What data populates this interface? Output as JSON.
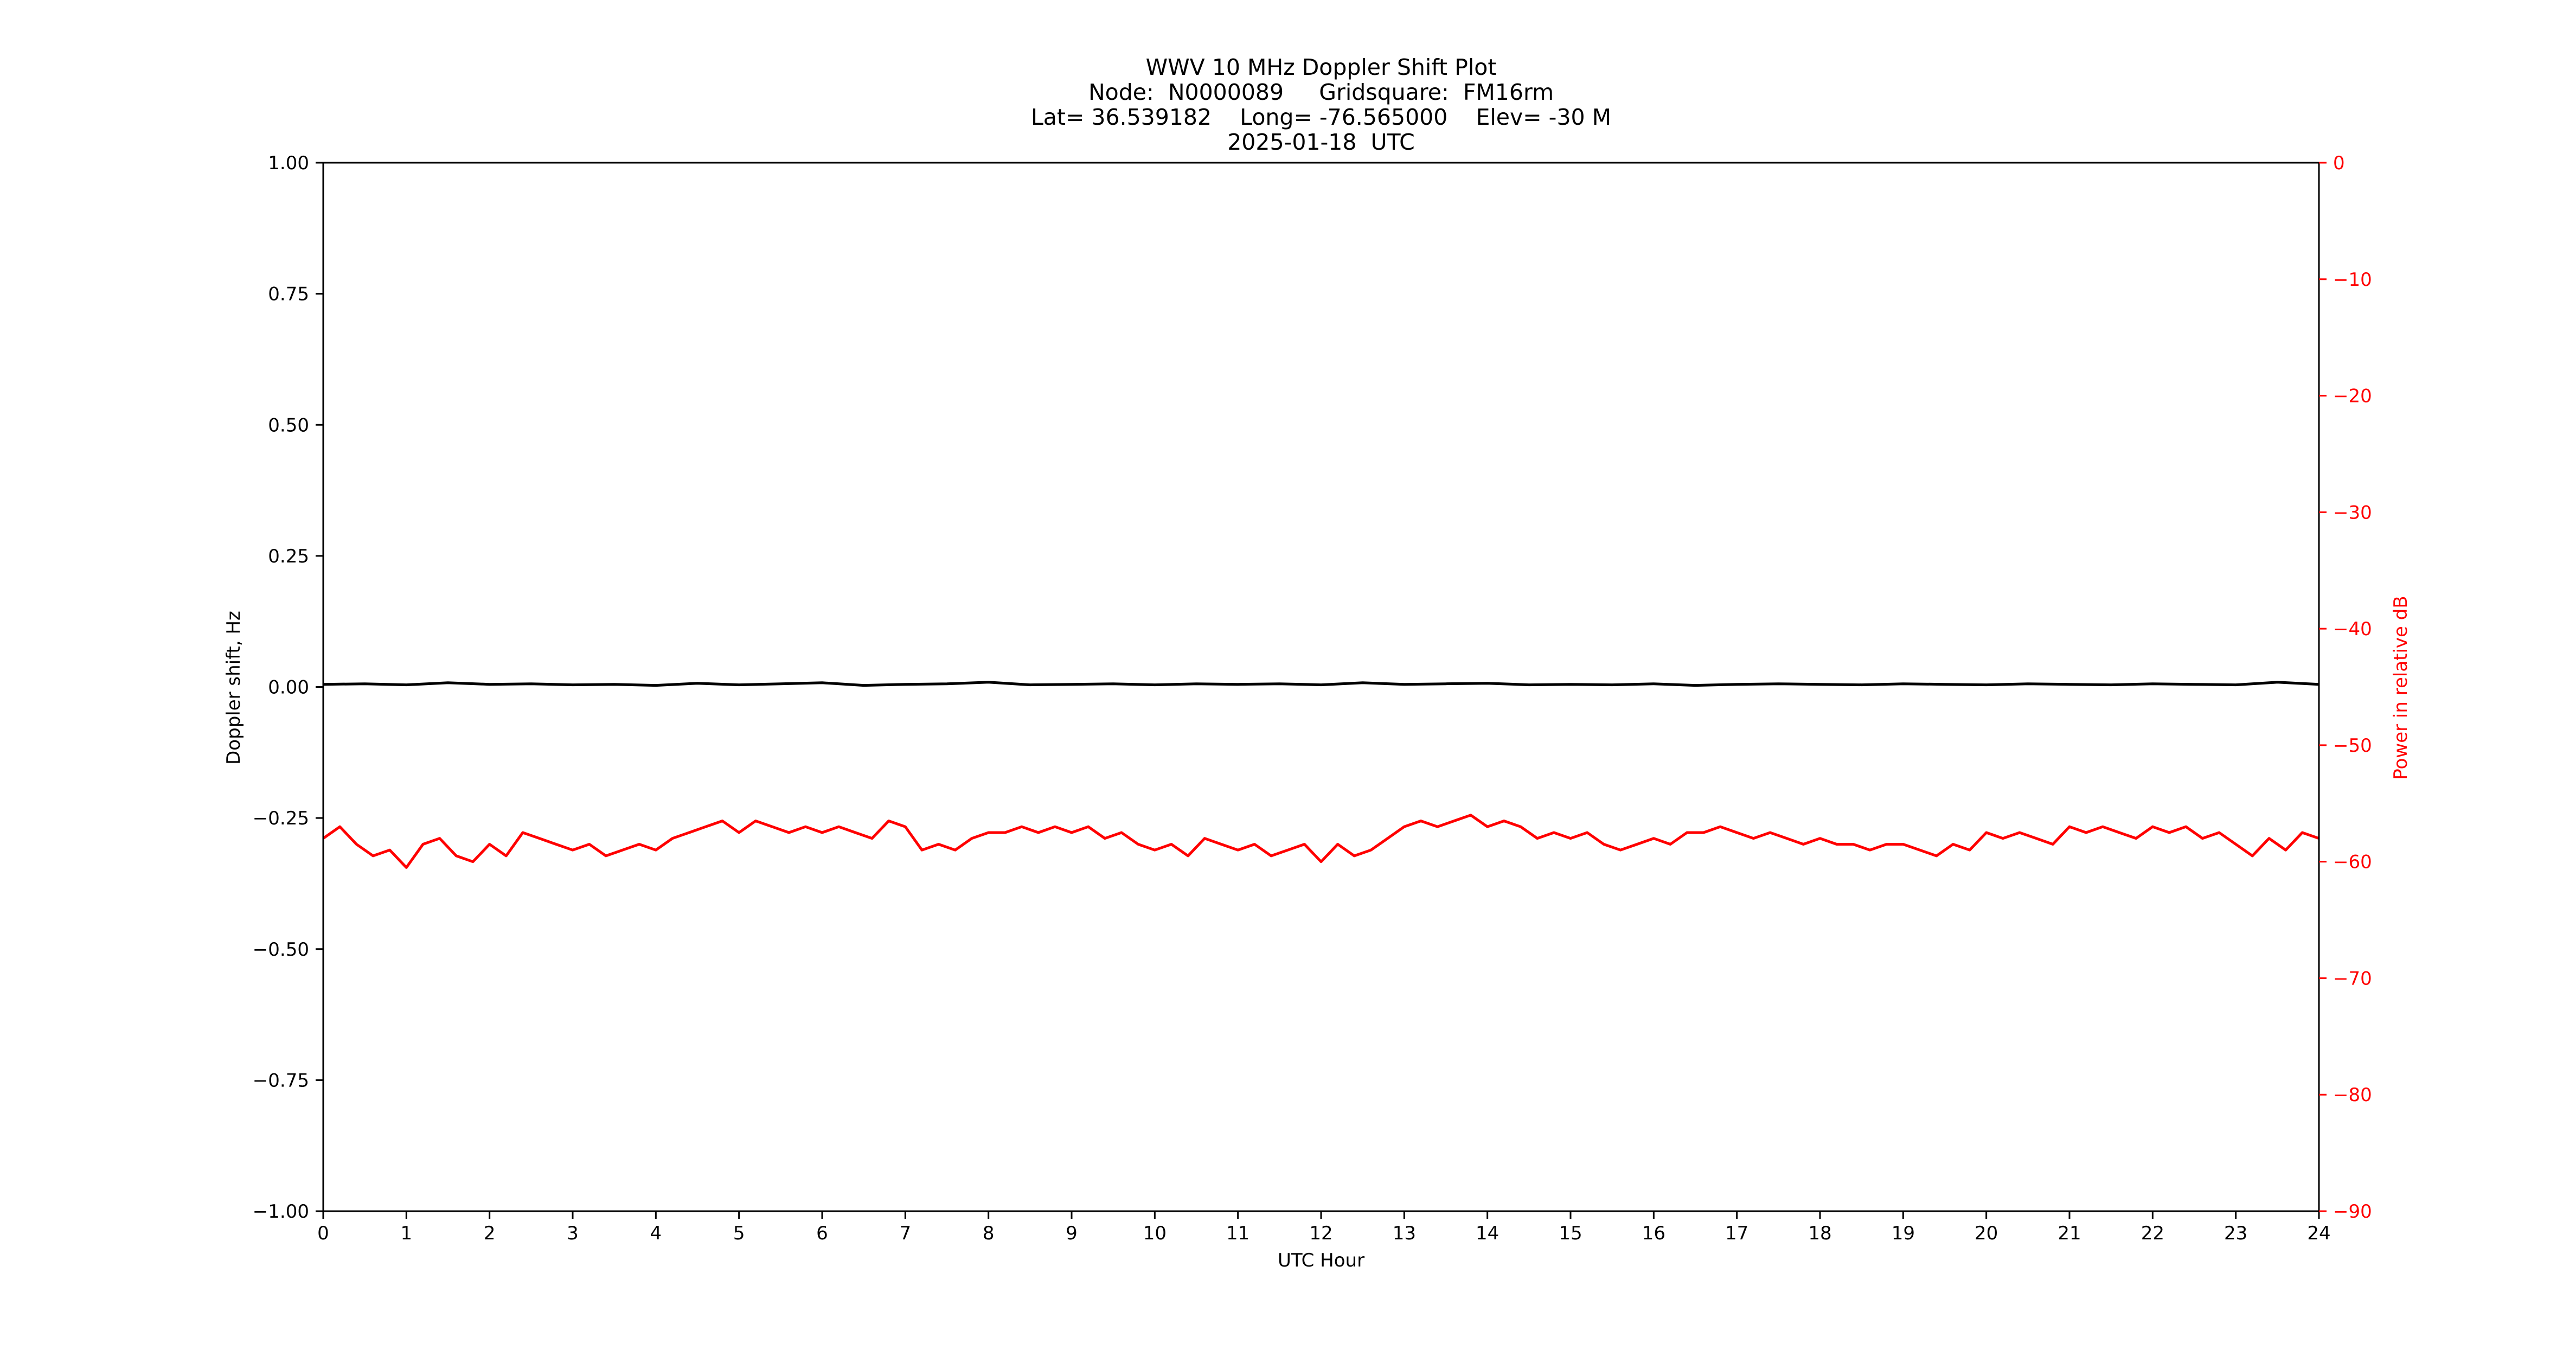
{
  "chart_data": {
    "type": "line",
    "title": "WWV 10 MHz Doppler Shift Plot",
    "subtitle_lines": [
      "Node:  N0000089     Gridsquare:  FM16rm",
      "Lat= 36.539182    Long= -76.565000    Elev= -30 M",
      "2025-01-18  UTC"
    ],
    "xlabel": "UTC Hour",
    "ylabel": "Doppler shift, Hz",
    "y2label": "Power in relative dB",
    "xlim": [
      0,
      24
    ],
    "ylim": [
      -1.0,
      1.0
    ],
    "y2lim": [
      -90,
      0
    ],
    "y2_inverted": true,
    "xticks": [
      0,
      1,
      2,
      3,
      4,
      5,
      6,
      7,
      8,
      9,
      10,
      11,
      12,
      13,
      14,
      15,
      16,
      17,
      18,
      19,
      20,
      21,
      22,
      23,
      24
    ],
    "yticks": [
      1.0,
      0.75,
      0.5,
      0.25,
      0.0,
      -0.25,
      -0.5,
      -0.75,
      -1.0
    ],
    "ytick_labels": [
      "1.00",
      "0.75",
      "0.50",
      "0.25",
      "0.00",
      "−0.25",
      "−0.50",
      "−0.75",
      "−1.00"
    ],
    "y2ticks": [
      0,
      -10,
      -20,
      -30,
      -40,
      -50,
      -60,
      -70,
      -80,
      -90
    ],
    "y2tick_labels": [
      "0",
      "−10",
      "−20",
      "−30",
      "−40",
      "−50",
      "−60",
      "−70",
      "−80",
      "−90"
    ],
    "grid": false,
    "colors": {
      "doppler": "#000000",
      "power": "#ff0000",
      "axes": "#000000"
    },
    "series": [
      {
        "axis": "left",
        "x": [
          0,
          0.5,
          1,
          1.5,
          2,
          2.5,
          3,
          3.5,
          4,
          4.5,
          5,
          5.5,
          6,
          6.5,
          7,
          7.5,
          8,
          8.5,
          9,
          9.5,
          10,
          10.5,
          11,
          11.5,
          12,
          12.5,
          13,
          13.5,
          14,
          14.5,
          15,
          15.5,
          16,
          16.5,
          17,
          17.5,
          18,
          18.5,
          19,
          19.5,
          20,
          20.5,
          21,
          21.5,
          22,
          22.5,
          23,
          23.5,
          24
        ],
        "values": [
          0.005,
          0.006,
          0.004,
          0.008,
          0.005,
          0.006,
          0.004,
          0.005,
          0.003,
          0.007,
          0.004,
          0.006,
          0.008,
          0.003,
          0.005,
          0.006,
          0.009,
          0.004,
          0.005,
          0.006,
          0.004,
          0.006,
          0.005,
          0.006,
          0.004,
          0.008,
          0.005,
          0.006,
          0.007,
          0.004,
          0.005,
          0.004,
          0.006,
          0.003,
          0.005,
          0.006,
          0.005,
          0.004,
          0.006,
          0.005,
          0.004,
          0.006,
          0.005,
          0.004,
          0.006,
          0.005,
          0.004,
          0.009,
          0.005
        ]
      },
      {
        "axis": "right",
        "x": [
          0,
          0.2,
          0.4,
          0.6,
          0.8,
          1.0,
          1.2,
          1.4,
          1.6,
          1.8,
          2.0,
          2.2,
          2.4,
          2.6,
          2.8,
          3.0,
          3.2,
          3.4,
          3.6,
          3.8,
          4.0,
          4.2,
          4.4,
          4.6,
          4.8,
          5.0,
          5.2,
          5.4,
          5.6,
          5.8,
          6.0,
          6.2,
          6.4,
          6.6,
          6.8,
          7.0,
          7.2,
          7.4,
          7.6,
          7.8,
          8.0,
          8.2,
          8.4,
          8.6,
          8.8,
          9.0,
          9.2,
          9.4,
          9.6,
          9.8,
          10.0,
          10.2,
          10.4,
          10.6,
          10.8,
          11.0,
          11.2,
          11.4,
          11.6,
          11.8,
          12.0,
          12.2,
          12.4,
          12.6,
          12.8,
          13.0,
          13.2,
          13.4,
          13.6,
          13.8,
          14.0,
          14.2,
          14.4,
          14.6,
          14.8,
          15.0,
          15.2,
          15.4,
          15.6,
          15.8,
          16.0,
          16.2,
          16.4,
          16.6,
          16.8,
          17.0,
          17.2,
          17.4,
          17.6,
          17.8,
          18.0,
          18.2,
          18.4,
          18.6,
          18.8,
          19.0,
          19.2,
          19.4,
          19.6,
          19.8,
          20.0,
          20.2,
          20.4,
          20.6,
          20.8,
          21.0,
          21.2,
          21.4,
          21.6,
          21.8,
          22.0,
          22.2,
          22.4,
          22.6,
          22.8,
          23.0,
          23.2,
          23.4,
          23.6,
          23.8,
          24.0
        ],
        "values": [
          -58.0,
          -57.0,
          -58.5,
          -59.5,
          -59.0,
          -60.5,
          -58.5,
          -58.0,
          -59.5,
          -60.0,
          -58.5,
          -59.5,
          -57.5,
          -58.0,
          -58.5,
          -59.0,
          -58.5,
          -59.5,
          -59.0,
          -58.5,
          -59.0,
          -58.0,
          -57.5,
          -57.0,
          -56.5,
          -57.5,
          -56.5,
          -57.0,
          -57.5,
          -57.0,
          -57.5,
          -57.0,
          -57.5,
          -58.0,
          -56.5,
          -57.0,
          -59.0,
          -58.5,
          -59.0,
          -58.0,
          -57.5,
          -57.5,
          -57.0,
          -57.5,
          -57.0,
          -57.5,
          -57.0,
          -58.0,
          -57.5,
          -58.5,
          -59.0,
          -58.5,
          -59.5,
          -58.0,
          -58.5,
          -59.0,
          -58.5,
          -59.5,
          -59.0,
          -58.5,
          -60.0,
          -58.5,
          -59.5,
          -59.0,
          -58.0,
          -57.0,
          -56.5,
          -57.0,
          -56.5,
          -56.0,
          -57.0,
          -56.5,
          -57.0,
          -58.0,
          -57.5,
          -58.0,
          -57.5,
          -58.5,
          -59.0,
          -58.5,
          -58.0,
          -58.5,
          -57.5,
          -57.5,
          -57.0,
          -57.5,
          -58.0,
          -57.5,
          -58.0,
          -58.5,
          -58.0,
          -58.5,
          -58.5,
          -59.0,
          -58.5,
          -58.5,
          -59.0,
          -59.5,
          -58.5,
          -59.0,
          -57.5,
          -58.0,
          -57.5,
          -58.0,
          -58.5,
          -57.0,
          -57.5,
          -57.0,
          -57.5,
          -58.0,
          -57.0,
          -57.5,
          -57.0,
          -58.0,
          -57.5,
          -58.5,
          -59.5,
          -58.0,
          -59.0,
          -57.5,
          -58.0
        ]
      }
    ]
  }
}
